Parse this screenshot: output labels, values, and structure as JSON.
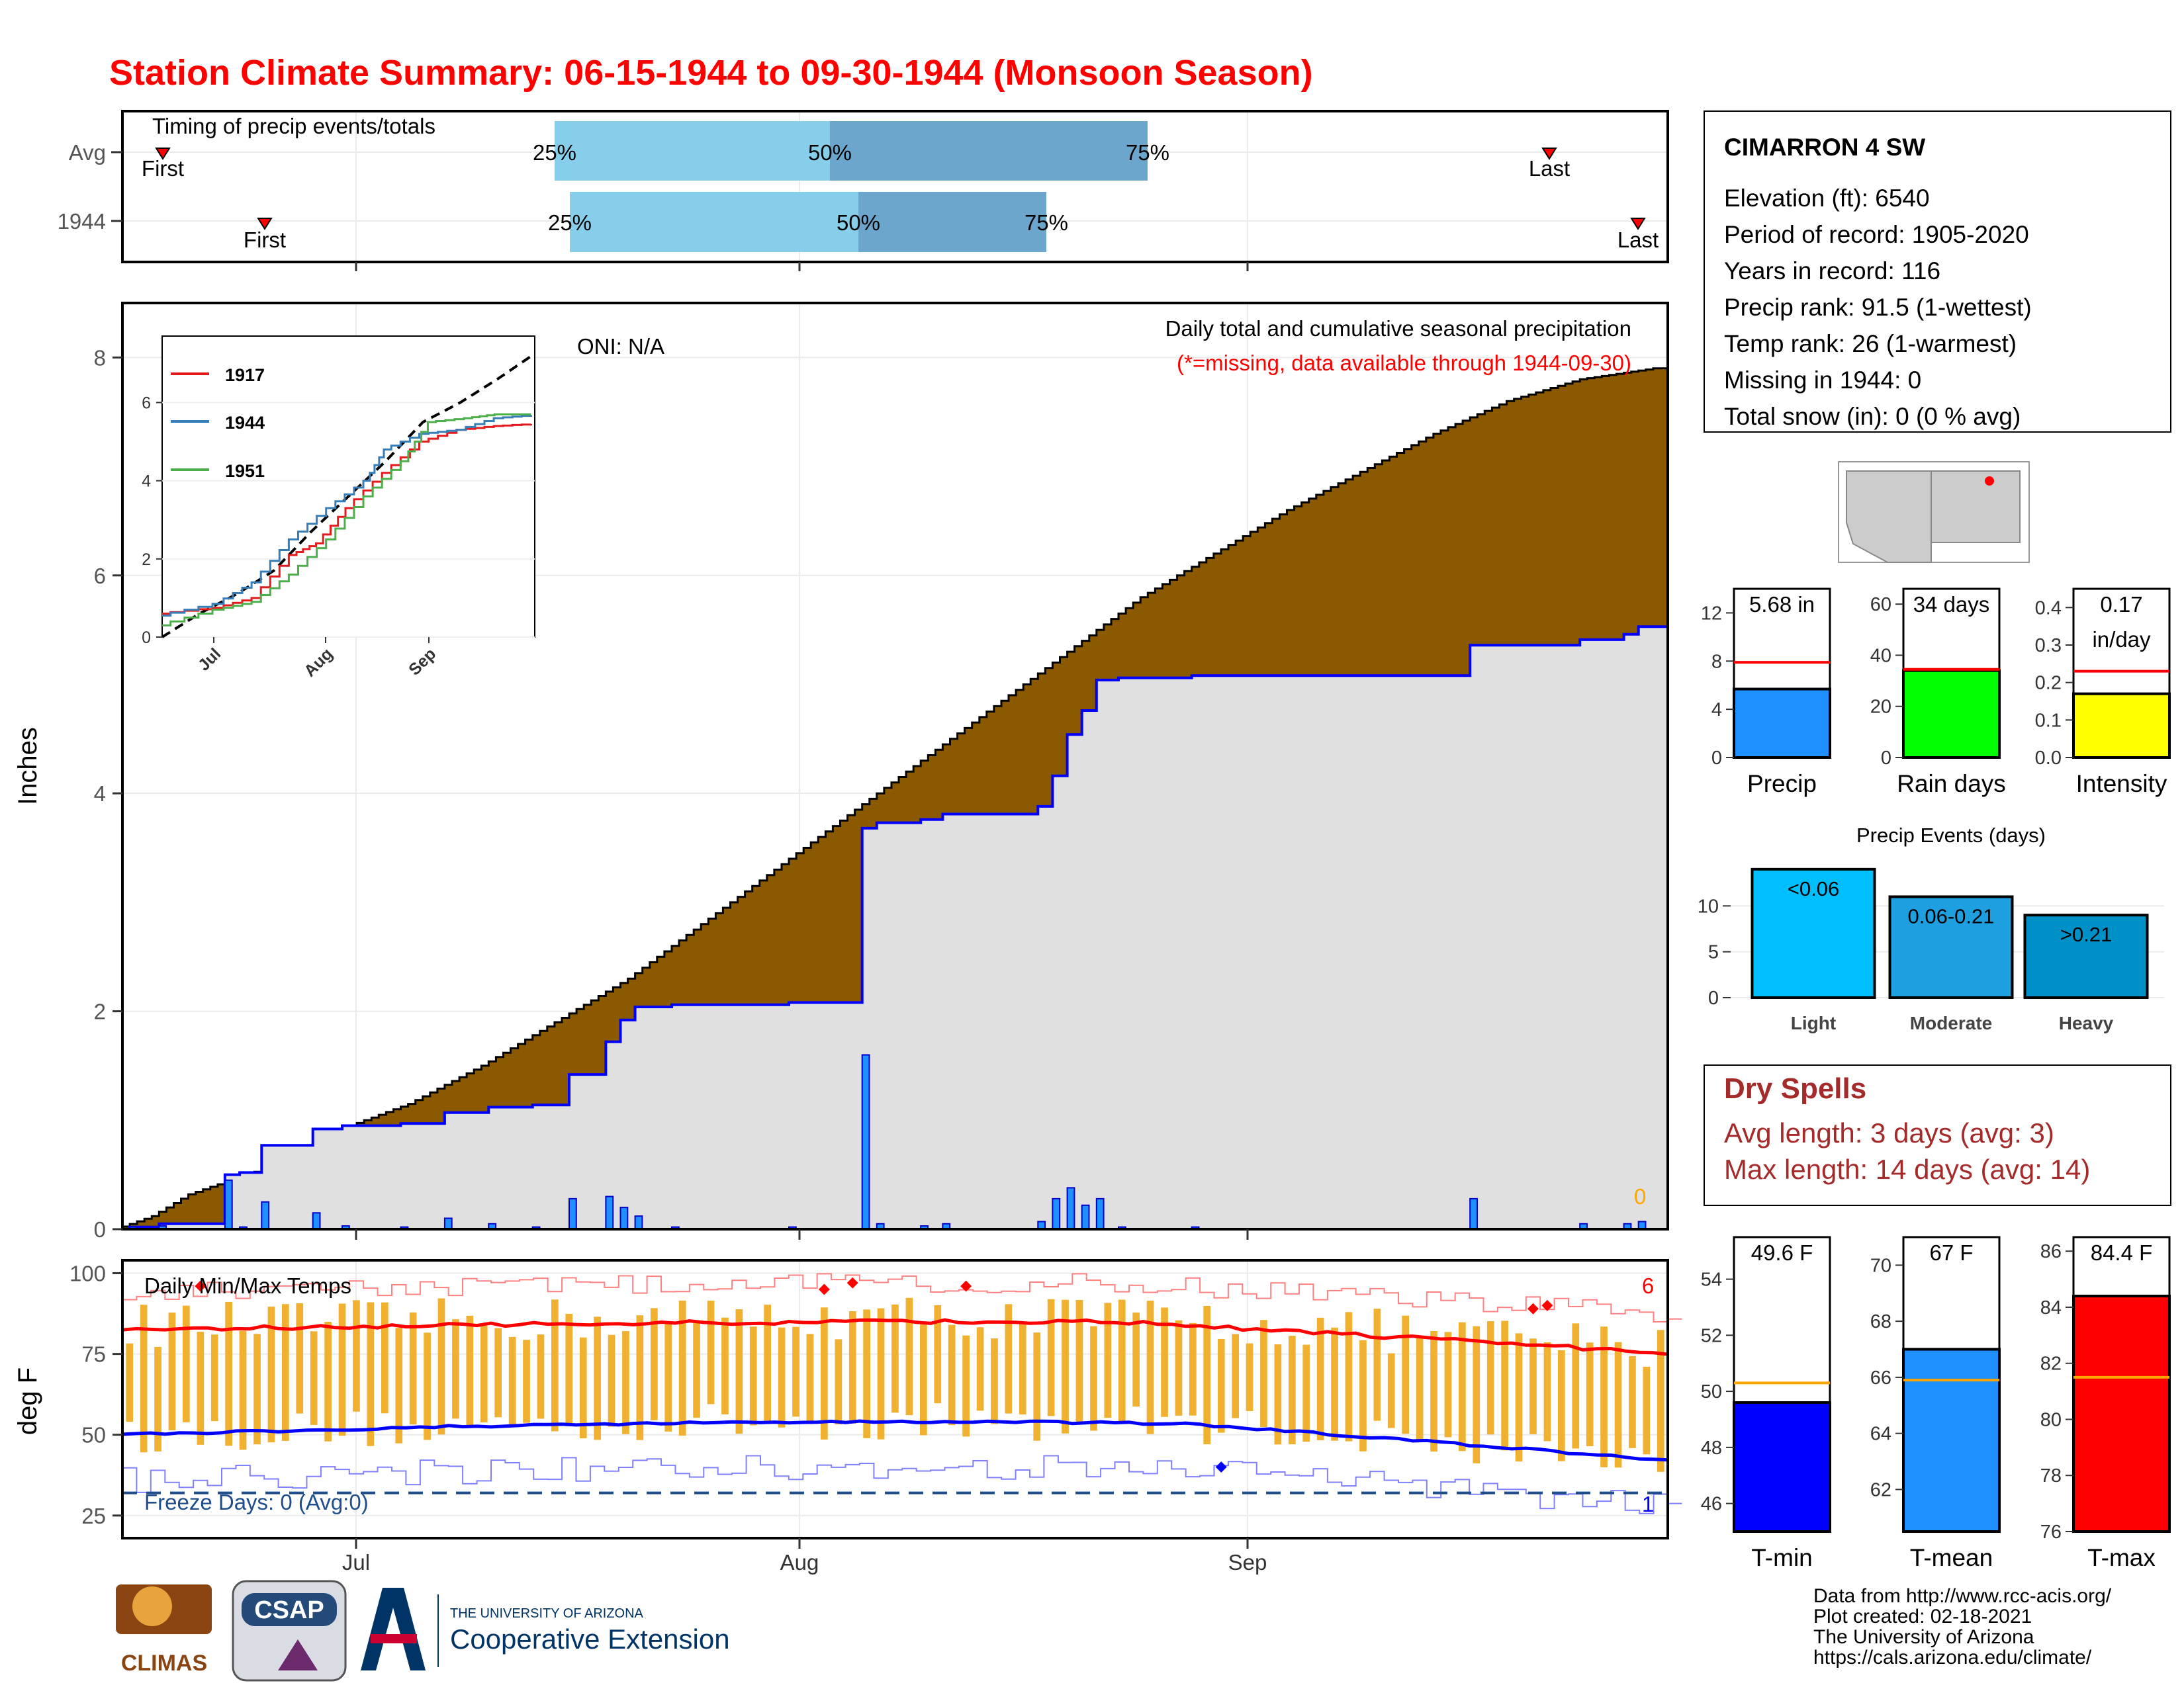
{
  "title": "Station Climate Summary: 06-15-1944 to 09-30-1944 (Monsoon Season)",
  "colors": {
    "title": "#ff0000",
    "brown": "#8b5a00",
    "gray_area": "#e0e0e0",
    "precip_blue": "#1e90ff",
    "line_blue": "#0000ff",
    "timing_light": "#87ceeb",
    "timing_dark": "#6ca6cd",
    "orange_bars": "#f0b030",
    "dry_spells": "#a52a2a"
  },
  "timing": {
    "title": "Timing of precip events/totals",
    "rows": [
      {
        "label": "Avg",
        "first": "First",
        "last": "Last",
        "p25": "25%",
        "p50": "50%",
        "p75": "75%"
      },
      {
        "label": "1944",
        "first": "First",
        "last": "Last",
        "p25": "25%",
        "p50": "50%",
        "p75": "75%"
      }
    ]
  },
  "main": {
    "ylabel": "Inches",
    "yticks": [
      "0",
      "2",
      "4",
      "6",
      "8"
    ],
    "oni": "ONI: N/A",
    "note1": "Daily total and cumulative seasonal precipitation",
    "note2": "(*=missing, data available through 1944-09-30)",
    "zero_label": "0"
  },
  "inset": {
    "legend": [
      "1917",
      "1944",
      "1951"
    ],
    "legend_colors": [
      "#e41a1c",
      "#377eb8",
      "#4daf4a"
    ],
    "yticks": [
      "0",
      "2",
      "4",
      "6"
    ],
    "xticks": [
      "Jul",
      "Aug",
      "Sep"
    ]
  },
  "temps": {
    "title": "Daily Min/Max Temps",
    "ylabel": "deg F",
    "yticks": [
      "25",
      "50",
      "75",
      "100"
    ],
    "xticks": [
      "Jul",
      "Aug",
      "Sep"
    ],
    "freeze": "Freeze Days: 0 (Avg:0)",
    "count_hot": "6",
    "count_cold": "1"
  },
  "station": {
    "name": "CIMARRON 4 SW",
    "lines": [
      "Elevation (ft): 6540",
      "Period of record: 1905-2020",
      "Years in record: 116",
      "Precip rank: 91.5 (1-wettest)",
      "Temp rank: 26 (1-warmest)",
      "Missing in 1944: 0",
      "Total snow (in): 0 (0 % avg)"
    ]
  },
  "minibars": [
    {
      "label": "Precip",
      "value_text": "5.68 in",
      "value": 5.68,
      "avg": 7.9,
      "ymax": 14,
      "ticks": [
        "0",
        "4",
        "8",
        "12"
      ],
      "tickvals": [
        0,
        4,
        8,
        12
      ],
      "color": "#1e90ff"
    },
    {
      "label": "Rain days",
      "value_text": "34 days",
      "value": 34,
      "avg": 34.5,
      "ymax": 66,
      "ticks": [
        "0",
        "20",
        "40",
        "60"
      ],
      "tickvals": [
        0,
        20,
        40,
        60
      ],
      "color": "#00ff00"
    },
    {
      "label": "Intensity",
      "value_text": "0.17",
      "value_text2": "in/day",
      "value": 0.17,
      "avg": 0.23,
      "ymax": 0.45,
      "ticks": [
        "0.0",
        "0.1",
        "0.2",
        "0.3",
        "0.4"
      ],
      "tickvals": [
        0,
        0.1,
        0.2,
        0.3,
        0.4
      ],
      "color": "#ffff00"
    }
  ],
  "events": {
    "title": "Precip Events (days)",
    "bars": [
      {
        "label": "Light",
        "range": "<0.06",
        "value": 14,
        "color": "#00bfff"
      },
      {
        "label": "Moderate",
        "range": "0.06-0.21",
        "value": 11,
        "color": "#1ea0e0"
      },
      {
        "label": "Heavy",
        "range": ">0.21",
        "value": 9,
        "color": "#0090c8"
      }
    ],
    "yticks": [
      "0",
      "5",
      "10"
    ]
  },
  "dry_spells": {
    "title": "Dry Spells",
    "avg": "Avg length: 3 days (avg: 3)",
    "max": "Max length: 14 days (avg: 14)"
  },
  "tempbars": [
    {
      "label": "T-min",
      "value_text": "49.6 F",
      "value": 49.6,
      "avg": 50.3,
      "ymin": 45,
      "ymax": 55.5,
      "ticks": [
        "46",
        "48",
        "50",
        "52",
        "54"
      ],
      "tickvals": [
        46,
        48,
        50,
        52,
        54
      ],
      "color": "#0000ff"
    },
    {
      "label": "T-mean",
      "value_text": "67 F",
      "value": 67,
      "avg": 65.9,
      "ymin": 60.5,
      "ymax": 71,
      "ticks": [
        "62",
        "64",
        "66",
        "68",
        "70"
      ],
      "tickvals": [
        62,
        64,
        66,
        68,
        70
      ],
      "color": "#1e90ff"
    },
    {
      "label": "T-max",
      "value_text": "84.4 F",
      "value": 84.4,
      "avg": 81.5,
      "ymin": 76,
      "ymax": 86.5,
      "ticks": [
        "76",
        "78",
        "80",
        "82",
        "84",
        "86"
      ],
      "tickvals": [
        76,
        78,
        80,
        82,
        84,
        86
      ],
      "color": "#ff0000"
    }
  ],
  "footer": [
    "Data from http://www.rcc-acis.org/",
    "Plot created: 02-18-2021",
    "The University of Arizona",
    "https://cals.arizona.edu/climate/"
  ],
  "logos": {
    "climas": "CLIMAS",
    "csap": "CSAP",
    "ua_line1": "THE UNIVERSITY OF ARIZONA",
    "ua_line2": "Cooperative Extension"
  },
  "chart_data": [
    {
      "type": "area",
      "name": "cumulative precipitation",
      "x_start": "1944-06-15",
      "x_end": "1944-09-30",
      "ylim": [
        0,
        8.5
      ],
      "avg_cumulative_points": [
        [
          0,
          0
        ],
        [
          5,
          0.12
        ],
        [
          10,
          0.32
        ],
        [
          20,
          0.55
        ],
        [
          30,
          0.9
        ],
        [
          40,
          1.15
        ],
        [
          50,
          1.5
        ],
        [
          60,
          1.9
        ],
        [
          70,
          2.3
        ],
        [
          80,
          2.8
        ],
        [
          90,
          3.3
        ],
        [
          100,
          3.8
        ],
        [
          110,
          4.3
        ],
        [
          120,
          4.8
        ],
        [
          130,
          5.3
        ],
        [
          140,
          5.8
        ],
        [
          150,
          6.2
        ],
        [
          160,
          6.6
        ],
        [
          170,
          6.95
        ],
        [
          180,
          7.3
        ],
        [
          190,
          7.6
        ],
        [
          200,
          7.8
        ],
        [
          210,
          7.9
        ]
      ],
      "daily_1944": [
        [
          1,
          0.02
        ],
        [
          5,
          0.03
        ],
        [
          14,
          0.45
        ],
        [
          16,
          0.02
        ],
        [
          19,
          0.25
        ],
        [
          26,
          0.15
        ],
        [
          30,
          0.03
        ],
        [
          38,
          0.02
        ],
        [
          44,
          0.1
        ],
        [
          50,
          0.05
        ],
        [
          56,
          0.02
        ],
        [
          61,
          0.28
        ],
        [
          66,
          0.3
        ],
        [
          68,
          0.2
        ],
        [
          70,
          0.12
        ],
        [
          75,
          0.02
        ],
        [
          91,
          0.02
        ],
        [
          101,
          1.6
        ],
        [
          103,
          0.05
        ],
        [
          109,
          0.03
        ],
        [
          112,
          0.05
        ],
        [
          125,
          0.07
        ],
        [
          127,
          0.28
        ],
        [
          129,
          0.38
        ],
        [
          131,
          0.22
        ],
        [
          133,
          0.28
        ],
        [
          136,
          0.02
        ],
        [
          146,
          0.02
        ],
        [
          184,
          0.28
        ],
        [
          199,
          0.05
        ],
        [
          205,
          0.05
        ],
        [
          207,
          0.07
        ]
      ],
      "total_1944": 5.68
    },
    {
      "type": "line",
      "name": "inset seasonal comparison",
      "series": [
        {
          "name": "1917",
          "points": [
            [
              0,
              0.6
            ],
            [
              15,
              0.75
            ],
            [
              25,
              1
            ],
            [
              35,
              2.1
            ],
            [
              42,
              2.4
            ],
            [
              50,
              3.3
            ],
            [
              60,
              4.2
            ],
            [
              70,
              5.0
            ],
            [
              80,
              5.3
            ],
            [
              90,
              5.4
            ],
            [
              100,
              5.45
            ]
          ]
        },
        {
          "name": "1944",
          "points": [
            [
              0,
              0.55
            ],
            [
              15,
              0.85
            ],
            [
              25,
              1.4
            ],
            [
              35,
              2.5
            ],
            [
              45,
              3.3
            ],
            [
              55,
              4.0
            ],
            [
              60,
              4.8
            ],
            [
              70,
              5.2
            ],
            [
              80,
              5.3
            ],
            [
              90,
              5.6
            ],
            [
              100,
              5.68
            ]
          ]
        },
        {
          "name": "1951",
          "points": [
            [
              0,
              0.3
            ],
            [
              15,
              0.7
            ],
            [
              25,
              0.9
            ],
            [
              35,
              1.6
            ],
            [
              45,
              2.5
            ],
            [
              55,
              3.6
            ],
            [
              65,
              4.5
            ],
            [
              72,
              5.5
            ],
            [
              82,
              5.6
            ],
            [
              90,
              5.7
            ],
            [
              100,
              5.7
            ]
          ]
        }
      ],
      "ylim": [
        0,
        8
      ]
    },
    {
      "type": "line",
      "name": "daily min/max temps",
      "ylim": [
        18,
        104
      ],
      "freeze_line": 32
    }
  ]
}
